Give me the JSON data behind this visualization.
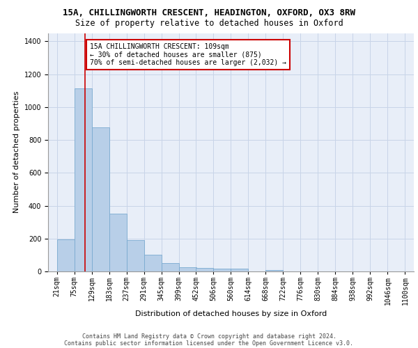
{
  "title_line1": "15A, CHILLINGWORTH CRESCENT, HEADINGTON, OXFORD, OX3 8RW",
  "title_line2": "Size of property relative to detached houses in Oxford",
  "xlabel": "Distribution of detached houses by size in Oxford",
  "ylabel": "Number of detached properties",
  "bin_labels": [
    "21sqm",
    "75sqm",
    "129sqm",
    "183sqm",
    "237sqm",
    "291sqm",
    "345sqm",
    "399sqm",
    "452sqm",
    "506sqm",
    "560sqm",
    "614sqm",
    "668sqm",
    "722sqm",
    "776sqm",
    "830sqm",
    "884sqm",
    "938sqm",
    "992sqm",
    "1046sqm",
    "1100sqm"
  ],
  "bar_heights": [
    195,
    1115,
    875,
    350,
    190,
    100,
    50,
    25,
    20,
    15,
    15,
    0,
    10,
    0,
    0,
    0,
    0,
    0,
    0,
    0
  ],
  "bar_color": "#b8cfe8",
  "bar_edge_color": "#7aaad0",
  "property_line_x": 109,
  "bin_edges": [
    21,
    75,
    129,
    183,
    237,
    291,
    345,
    399,
    452,
    506,
    560,
    614,
    668,
    722,
    776,
    830,
    884,
    938,
    992,
    1046,
    1100
  ],
  "annotation_box_text": "15A CHILLINGWORTH CRESCENT: 109sqm\n← 30% of detached houses are smaller (875)\n70% of semi-detached houses are larger (2,032) →",
  "annotation_box_color": "#cc0000",
  "red_line_color": "#cc0000",
  "grid_color": "#c8d4e8",
  "background_color": "#e8eef8",
  "ylim": [
    0,
    1450
  ],
  "yticks": [
    0,
    200,
    400,
    600,
    800,
    1000,
    1200,
    1400
  ],
  "footer_line1": "Contains HM Land Registry data © Crown copyright and database right 2024.",
  "footer_line2": "Contains public sector information licensed under the Open Government Licence v3.0.",
  "title_fontsize": 9,
  "subtitle_fontsize": 8.5,
  "axis_label_fontsize": 8,
  "tick_fontsize": 7,
  "annotation_fontsize": 7,
  "footer_fontsize": 6
}
